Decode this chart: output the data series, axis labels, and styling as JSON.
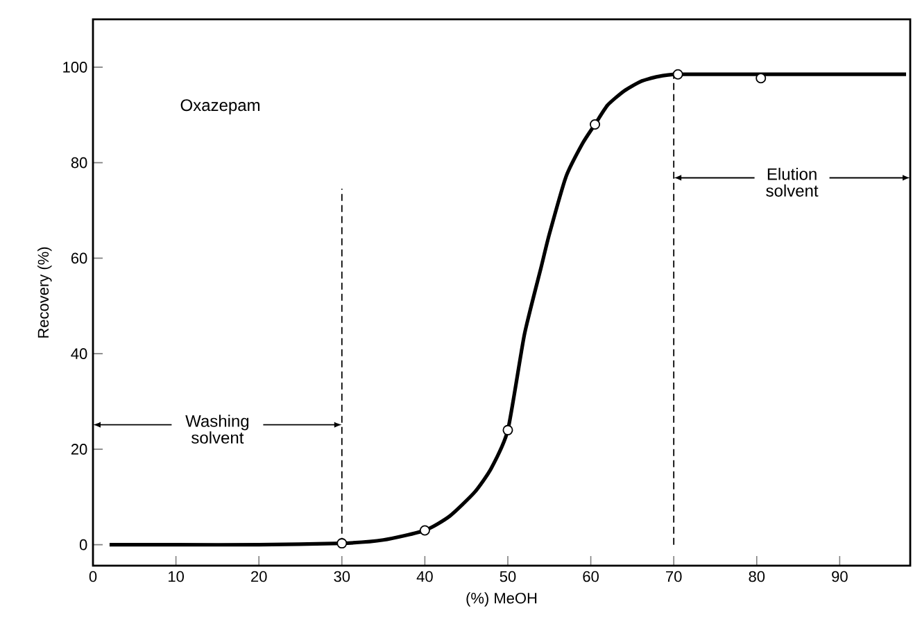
{
  "chart_data": {
    "type": "line",
    "xlabel": "(%) MeOH",
    "ylabel": "Recovery (%)",
    "xlim": [
      0,
      98.5
    ],
    "ylim": [
      -4.4,
      110
    ],
    "xticks": [
      0,
      10,
      20,
      30,
      40,
      50,
      60,
      70,
      80,
      90
    ],
    "yticks": [
      0,
      20,
      40,
      60,
      80,
      100
    ],
    "series": [
      {
        "color": "#000000",
        "marker": "none",
        "x": [
          2,
          10,
          20,
          30,
          35,
          40,
          43,
          46,
          48,
          50,
          52,
          54,
          55,
          57,
          59,
          60.5,
          62,
          64,
          66,
          68,
          70.5,
          80,
          98
        ],
        "values": [
          0,
          0,
          0,
          0.3,
          1,
          3,
          6,
          11,
          16,
          24,
          44,
          58,
          65,
          77,
          84,
          88,
          92,
          95,
          97,
          98,
          98.5,
          98.5,
          98.5
        ]
      },
      {
        "type": "scatter",
        "color": "#000000",
        "marker": "circle",
        "x": [
          30,
          40,
          50,
          60.5,
          70.5,
          80.5
        ],
        "values": [
          0.3,
          3,
          24,
          88,
          98.5,
          97.7
        ]
      }
    ],
    "ref_lines": [
      {
        "axis": "x",
        "value": 30,
        "line_style": "dashed"
      },
      {
        "axis": "x",
        "value": 70,
        "line_style": "dashed"
      }
    ],
    "annotations": [
      "Oxazepam",
      "Washing solvent",
      "Elution solvent"
    ],
    "grid": false
  }
}
